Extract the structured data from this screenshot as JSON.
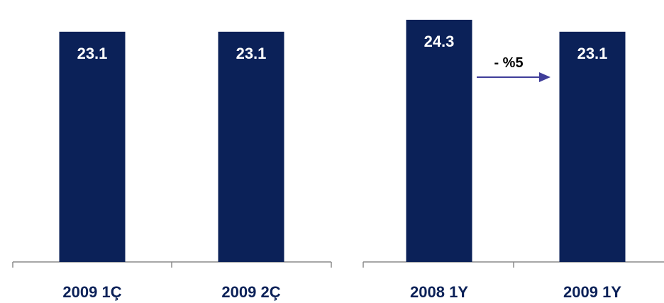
{
  "colors": {
    "bar": "#0b2158",
    "axis": "#8a8a8a",
    "label": "#0b2158",
    "arrow": "#3f3d99"
  },
  "chart_data": [
    {
      "type": "bar",
      "categories": [
        "2009 1Ç",
        "2009 2Ç"
      ],
      "values": [
        23.1,
        23.1
      ],
      "data_labels": [
        "23.1",
        "23.1"
      ],
      "ylim": [
        0,
        26.0
      ]
    },
    {
      "type": "bar",
      "categories": [
        "2008 1Y",
        "2009 1Y"
      ],
      "values": [
        24.3,
        23.1
      ],
      "data_labels": [
        "24.3",
        "23.1"
      ],
      "ylim": [
        0,
        26.0
      ],
      "annotation": {
        "text": "- %5"
      }
    }
  ]
}
